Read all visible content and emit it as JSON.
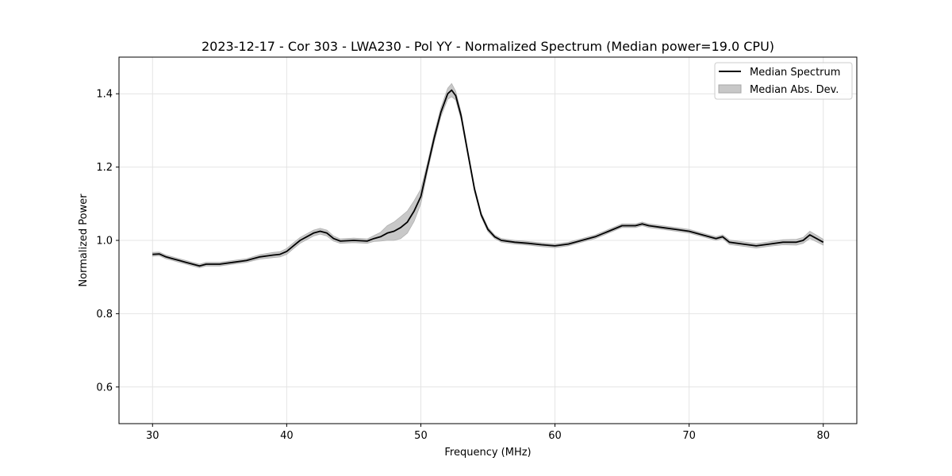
{
  "chart_data": {
    "type": "line",
    "title": "2023-12-17 - Cor 303 - LWA230 - Pol YY - Normalized Spectrum (Median power=19.0 CPU)",
    "xlabel": "Frequency (MHz)",
    "ylabel": "Normalized Power",
    "xlim": [
      27.5,
      82.5
    ],
    "ylim": [
      0.5,
      1.5
    ],
    "xticks": [
      30,
      40,
      50,
      60,
      70,
      80
    ],
    "yticks": [
      0.6,
      0.8,
      1.0,
      1.2,
      1.4
    ],
    "xtick_labels": [
      "30",
      "40",
      "50",
      "60",
      "70",
      "80"
    ],
    "ytick_labels": [
      "0.6",
      "0.8",
      "1.0",
      "1.2",
      "1.4"
    ],
    "grid": true,
    "legend_position": "top-right",
    "legend": [
      {
        "label": "Median Spectrum",
        "kind": "line",
        "color": "#000000"
      },
      {
        "label": "Median Abs. Dev.",
        "kind": "band",
        "color": "#c8c8c8"
      }
    ],
    "series": [
      {
        "name": "Median Spectrum",
        "color": "#000000",
        "x": [
          30,
          30.5,
          31,
          31.5,
          32,
          32.5,
          33,
          33.5,
          34,
          35,
          36,
          37,
          38,
          39,
          39.5,
          40,
          40.5,
          41,
          41.5,
          42,
          42.5,
          43,
          43.5,
          44,
          45,
          46,
          46.5,
          47,
          47.5,
          48,
          48.5,
          49,
          49.5,
          50,
          50.5,
          51,
          51.5,
          52,
          52.3,
          52.6,
          53,
          53.5,
          54,
          54.5,
          55,
          55.5,
          56,
          57,
          58,
          59,
          60,
          61,
          62,
          63,
          64,
          65,
          66,
          66.5,
          67,
          68,
          69,
          70,
          71,
          72,
          72.5,
          73,
          74,
          75,
          76,
          77,
          78,
          78.5,
          79,
          79.5,
          80
        ],
        "y": [
          0.962,
          0.963,
          0.955,
          0.95,
          0.945,
          0.94,
          0.935,
          0.93,
          0.935,
          0.935,
          0.94,
          0.945,
          0.955,
          0.96,
          0.962,
          0.97,
          0.985,
          1.0,
          1.01,
          1.02,
          1.025,
          1.02,
          1.005,
          0.998,
          1.0,
          0.998,
          1.005,
          1.01,
          1.02,
          1.025,
          1.035,
          1.05,
          1.08,
          1.12,
          1.2,
          1.28,
          1.35,
          1.4,
          1.41,
          1.395,
          1.34,
          1.24,
          1.14,
          1.07,
          1.03,
          1.01,
          1.0,
          0.995,
          0.992,
          0.988,
          0.985,
          0.99,
          1.0,
          1.01,
          1.025,
          1.04,
          1.04,
          1.045,
          1.04,
          1.035,
          1.03,
          1.025,
          1.015,
          1.005,
          1.01,
          0.995,
          0.99,
          0.985,
          0.99,
          0.995,
          0.995,
          1.0,
          1.015,
          1.005,
          0.995
        ]
      },
      {
        "name": "Median Abs. Dev.",
        "color": "#c8c8c8",
        "x": [
          30,
          30.5,
          31,
          31.5,
          32,
          32.5,
          33,
          33.5,
          34,
          35,
          36,
          37,
          38,
          39,
          39.5,
          40,
          40.5,
          41,
          41.5,
          42,
          42.5,
          43,
          43.5,
          44,
          45,
          46,
          46.5,
          47,
          47.5,
          48,
          48.5,
          49,
          49.5,
          50,
          50.5,
          51,
          51.5,
          52,
          52.3,
          52.6,
          53,
          53.5,
          54,
          54.5,
          55,
          55.5,
          56,
          57,
          58,
          59,
          60,
          61,
          62,
          63,
          64,
          65,
          66,
          66.5,
          67,
          68,
          69,
          70,
          71,
          72,
          72.5,
          73,
          74,
          75,
          76,
          77,
          78,
          78.5,
          79,
          79.5,
          80
        ],
        "deviation": [
          0.005,
          0.005,
          0.005,
          0.005,
          0.005,
          0.005,
          0.005,
          0.005,
          0.005,
          0.005,
          0.005,
          0.005,
          0.006,
          0.007,
          0.007,
          0.008,
          0.008,
          0.008,
          0.008,
          0.008,
          0.008,
          0.008,
          0.007,
          0.006,
          0.006,
          0.006,
          0.008,
          0.012,
          0.02,
          0.025,
          0.03,
          0.03,
          0.028,
          0.02,
          0.012,
          0.012,
          0.012,
          0.015,
          0.018,
          0.012,
          0.01,
          0.008,
          0.007,
          0.006,
          0.006,
          0.005,
          0.005,
          0.005,
          0.005,
          0.005,
          0.005,
          0.005,
          0.005,
          0.005,
          0.005,
          0.005,
          0.005,
          0.005,
          0.005,
          0.005,
          0.005,
          0.005,
          0.005,
          0.005,
          0.005,
          0.006,
          0.006,
          0.006,
          0.006,
          0.007,
          0.008,
          0.008,
          0.01,
          0.009,
          0.008
        ]
      }
    ]
  }
}
